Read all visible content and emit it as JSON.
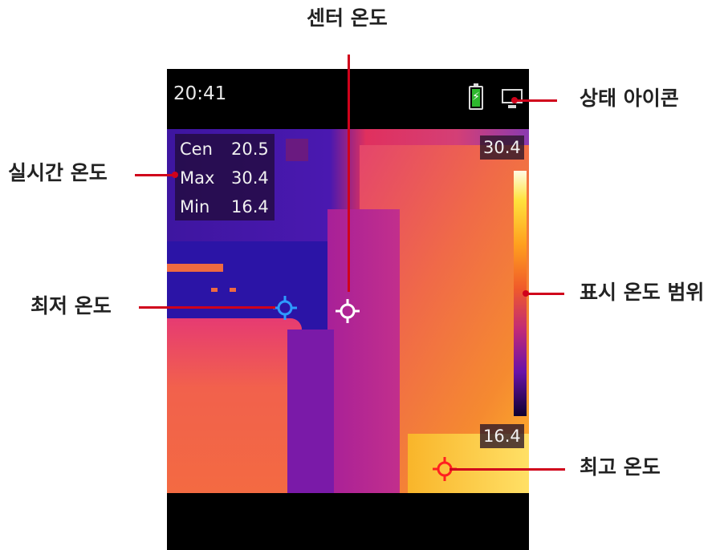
{
  "callouts": {
    "center_temp": "센터 온도",
    "status_icons": "상태 아이콘",
    "realtime_temp": "실시간 온도",
    "min_temp": "최저 온도",
    "display_range": "표시 온도 범위",
    "max_temp": "최고 온도"
  },
  "device": {
    "clock": "20:41",
    "readout": {
      "cen_label": "Cen",
      "cen_value": "20.5",
      "max_label": "Max",
      "max_value": "30.4",
      "min_label": "Min",
      "min_value": "16.4"
    },
    "scale": {
      "high": "30.4",
      "low": "16.4"
    },
    "icons": {
      "battery": "battery-charging-icon",
      "display": "display-mode-icon"
    }
  },
  "colors": {
    "leader": "#d0021b",
    "min_marker": "#2e9bff",
    "max_marker": "#ff2020",
    "center_marker": "#ffffff"
  }
}
